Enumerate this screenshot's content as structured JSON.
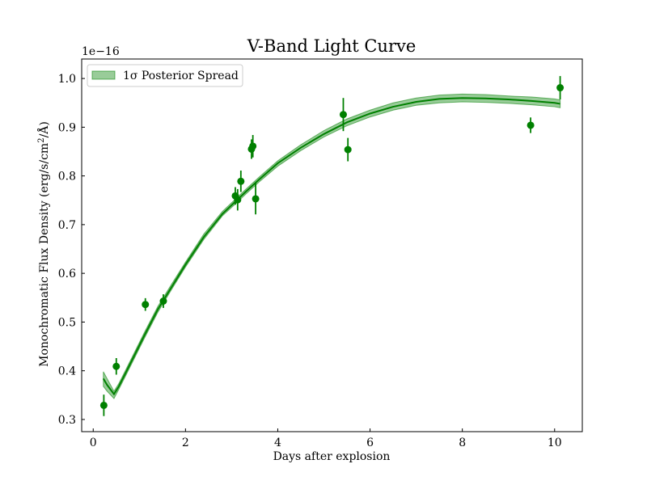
{
  "chart_data": {
    "type": "scatter",
    "title": "V-Band Light Curve",
    "xlabel": "Days after explosion",
    "ylabel_prefix": "Monochromatic Flux Density (erg/s/cm",
    "ylabel_suffix": "/Å)",
    "ylabel_superscript": "2",
    "offset_text": "1e−16",
    "x_range": [
      -0.25,
      10.6
    ],
    "y_range": [
      0.275,
      1.04
    ],
    "x_ticks": [
      0,
      2,
      4,
      6,
      8,
      10
    ],
    "y_ticks": [
      0.3,
      0.4,
      0.5,
      0.6,
      0.7,
      0.8,
      0.9,
      1.0
    ],
    "x_tick_labels": [
      "0",
      "2",
      "4",
      "6",
      "8",
      "10"
    ],
    "y_tick_labels": [
      "0.3",
      "0.4",
      "0.5",
      "0.6",
      "0.7",
      "0.8",
      "0.9",
      "1.0"
    ],
    "legend": {
      "label": "1σ Posterior Spread",
      "placement": "upper left"
    },
    "series": [
      {
        "name": "1σ Posterior Spread",
        "kind": "band",
        "color": "#008000",
        "alpha": 0.4,
        "x": [
          0.22,
          0.3,
          0.45,
          0.55,
          0.7,
          0.9,
          1.1,
          1.4,
          1.7,
          2.0,
          2.4,
          2.8,
          3.1,
          3.3,
          3.6,
          4.0,
          4.5,
          5.0,
          5.5,
          6.0,
          6.5,
          7.0,
          7.5,
          8.0,
          8.5,
          9.0,
          9.5,
          10.0,
          10.12
        ],
        "lower": [
          0.368,
          0.358,
          0.343,
          0.361,
          0.389,
          0.427,
          0.465,
          0.52,
          0.567,
          0.613,
          0.67,
          0.718,
          0.744,
          0.762,
          0.788,
          0.82,
          0.852,
          0.88,
          0.903,
          0.921,
          0.935,
          0.945,
          0.95,
          0.952,
          0.951,
          0.949,
          0.946,
          0.942,
          0.94
        ],
        "upper": [
          0.398,
          0.384,
          0.358,
          0.373,
          0.401,
          0.439,
          0.477,
          0.532,
          0.578,
          0.623,
          0.681,
          0.727,
          0.754,
          0.772,
          0.798,
          0.831,
          0.864,
          0.893,
          0.917,
          0.935,
          0.95,
          0.96,
          0.966,
          0.968,
          0.967,
          0.964,
          0.962,
          0.958,
          0.956
        ]
      },
      {
        "name": "",
        "kind": "line",
        "color": "#008000",
        "x": [
          0.22,
          0.3,
          0.45,
          0.55,
          0.7,
          0.9,
          1.1,
          1.4,
          1.7,
          2.0,
          2.4,
          2.8,
          3.1,
          3.3,
          3.6,
          4.0,
          4.5,
          5.0,
          5.5,
          6.0,
          6.5,
          7.0,
          7.5,
          8.0,
          8.5,
          9.0,
          9.5,
          10.0,
          10.12
        ],
        "y": [
          0.384,
          0.371,
          0.352,
          0.367,
          0.395,
          0.433,
          0.471,
          0.526,
          0.572,
          0.618,
          0.675,
          0.722,
          0.749,
          0.767,
          0.793,
          0.826,
          0.858,
          0.886,
          0.91,
          0.928,
          0.942,
          0.952,
          0.958,
          0.96,
          0.959,
          0.957,
          0.954,
          0.95,
          0.948
        ]
      },
      {
        "name": "",
        "kind": "errorbar",
        "color": "#008000",
        "x": [
          0.23,
          0.5,
          1.13,
          1.52,
          3.08,
          3.13,
          3.2,
          3.43,
          3.46,
          3.52,
          5.42,
          5.52,
          9.48,
          10.12
        ],
        "y": [
          0.329,
          0.409,
          0.536,
          0.543,
          0.759,
          0.751,
          0.789,
          0.855,
          0.861,
          0.753,
          0.926,
          0.854,
          0.904,
          0.981
        ],
        "yerr": [
          0.022,
          0.017,
          0.013,
          0.014,
          0.018,
          0.022,
          0.022,
          0.02,
          0.023,
          0.032,
          0.034,
          0.024,
          0.016,
          0.024
        ]
      }
    ],
    "grid": false
  }
}
